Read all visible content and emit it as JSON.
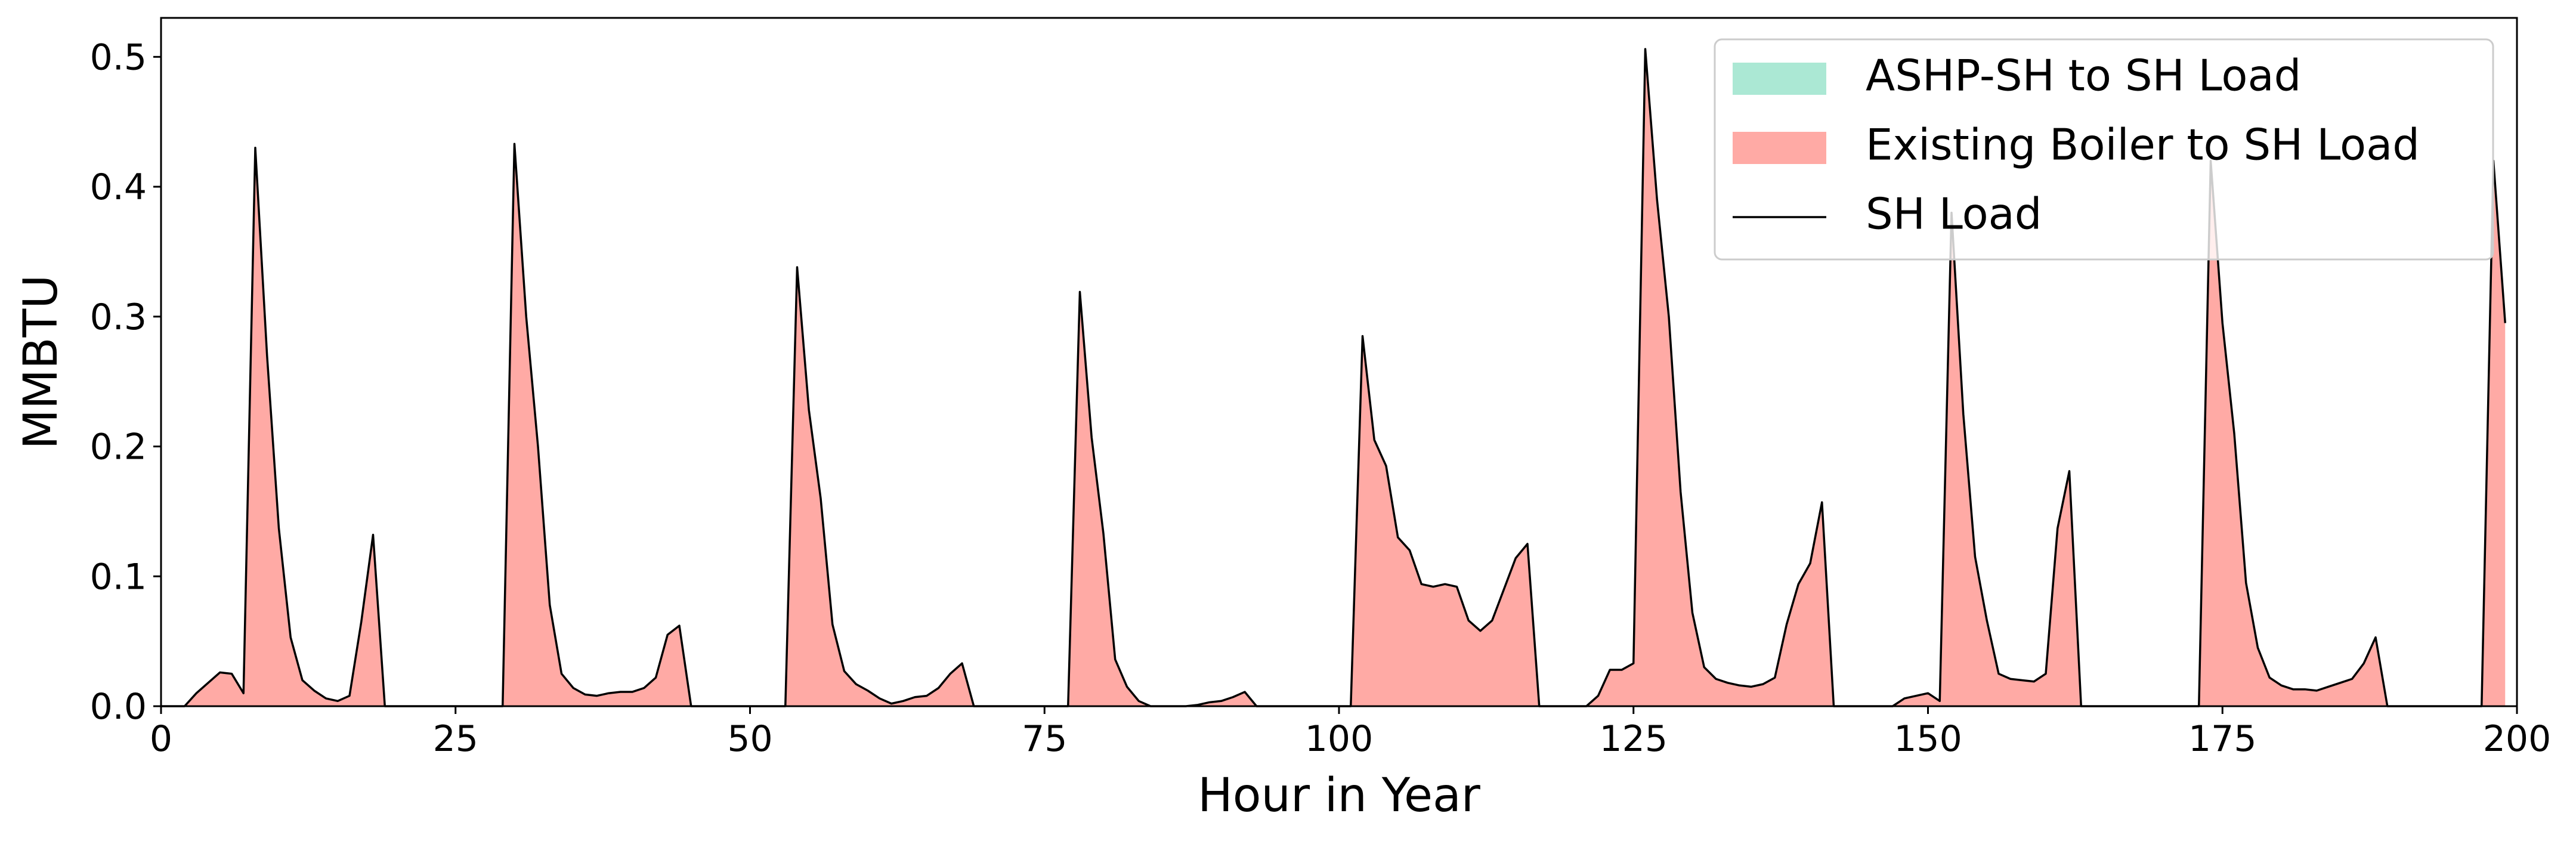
{
  "chart_data": {
    "type": "stacked_area",
    "xlabel": "Hour in Year",
    "ylabel": "MMBTU",
    "x": [
      0,
      1,
      2,
      3,
      4,
      5,
      6,
      7,
      8,
      9,
      10,
      11,
      12,
      13,
      14,
      15,
      16,
      17,
      18,
      19,
      20,
      21,
      22,
      23,
      24,
      25,
      26,
      27,
      28,
      29,
      30,
      31,
      32,
      33,
      34,
      35,
      36,
      37,
      38,
      39,
      40,
      41,
      42,
      43,
      44,
      45,
      46,
      47,
      48,
      49,
      50,
      51,
      52,
      53,
      54,
      55,
      56,
      57,
      58,
      59,
      60,
      61,
      62,
      63,
      64,
      65,
      66,
      67,
      68,
      69,
      70,
      71,
      72,
      73,
      74,
      75,
      76,
      77,
      78,
      79,
      80,
      81,
      82,
      83,
      84,
      85,
      86,
      87,
      88,
      89,
      90,
      91,
      92,
      93,
      94,
      95,
      96,
      97,
      98,
      99,
      100,
      101,
      102,
      103,
      104,
      105,
      106,
      107,
      108,
      109,
      110,
      111,
      112,
      113,
      114,
      115,
      116,
      117,
      118,
      119,
      120,
      121,
      122,
      123,
      124,
      125,
      126,
      127,
      128,
      129,
      130,
      131,
      132,
      133,
      134,
      135,
      136,
      137,
      138,
      139,
      140,
      141,
      142,
      143,
      144,
      145,
      146,
      147,
      148,
      149,
      150,
      151,
      152,
      153,
      154,
      155,
      156,
      157,
      158,
      159,
      160,
      161,
      162,
      163,
      164,
      165,
      166,
      167,
      168,
      169,
      170,
      171,
      172,
      173,
      174,
      175,
      176,
      177,
      178,
      179,
      180,
      181,
      182,
      183,
      184,
      185,
      186,
      187,
      188,
      189,
      190,
      191,
      192,
      193,
      194,
      195,
      196,
      197,
      198,
      199
    ],
    "series": [
      {
        "name": "ASHP-SH to SH Load",
        "color": "#abe8d4",
        "style": "area",
        "values": [
          0,
          0,
          0,
          0,
          0,
          0,
          0,
          0,
          0,
          0,
          0,
          0,
          0,
          0,
          0,
          0,
          0,
          0,
          0,
          0,
          0,
          0,
          0,
          0,
          0,
          0,
          0,
          0,
          0,
          0,
          0,
          0,
          0,
          0,
          0,
          0,
          0,
          0,
          0,
          0,
          0,
          0,
          0,
          0,
          0,
          0,
          0,
          0,
          0,
          0,
          0,
          0,
          0,
          0,
          0,
          0,
          0,
          0,
          0,
          0,
          0,
          0,
          0,
          0,
          0,
          0,
          0,
          0,
          0,
          0,
          0,
          0,
          0,
          0,
          0,
          0,
          0,
          0,
          0,
          0,
          0,
          0,
          0,
          0,
          0,
          0,
          0,
          0,
          0,
          0,
          0,
          0,
          0,
          0,
          0,
          0,
          0,
          0,
          0,
          0,
          0,
          0,
          0,
          0,
          0,
          0,
          0,
          0,
          0,
          0,
          0,
          0,
          0,
          0,
          0,
          0,
          0,
          0,
          0,
          0,
          0,
          0,
          0,
          0,
          0,
          0,
          0,
          0,
          0,
          0,
          0,
          0,
          0,
          0,
          0,
          0,
          0,
          0,
          0,
          0,
          0,
          0,
          0,
          0,
          0,
          0,
          0,
          0,
          0,
          0,
          0,
          0,
          0,
          0,
          0,
          0,
          0,
          0,
          0,
          0,
          0,
          0,
          0,
          0,
          0,
          0,
          0,
          0,
          0,
          0,
          0,
          0,
          0,
          0,
          0,
          0,
          0,
          0,
          0,
          0,
          0,
          0,
          0,
          0,
          0,
          0,
          0,
          0,
          0,
          0,
          0,
          0,
          0,
          0,
          0,
          0,
          0,
          0,
          0,
          0
        ]
      },
      {
        "name": "Existing Boiler to SH Load",
        "color": "#ffaaa5",
        "style": "area",
        "values": [
          0,
          0,
          0,
          0.01,
          0.018,
          0.026,
          0.025,
          0.01,
          0.43,
          0.27,
          0.137,
          0.053,
          0.02,
          0.012,
          0.006,
          0.004,
          0.008,
          0.065,
          0.132,
          0,
          0,
          0,
          0,
          0,
          0,
          0,
          0,
          0,
          0,
          0,
          0.433,
          0.3,
          0.2,
          0.078,
          0.025,
          0.014,
          0.009,
          0.008,
          0.01,
          0.011,
          0.011,
          0.014,
          0.022,
          0.055,
          0.062,
          0,
          0,
          0,
          0,
          0,
          0,
          0,
          0,
          0,
          0.338,
          0.228,
          0.16,
          0.063,
          0.027,
          0.017,
          0.012,
          0.006,
          0.002,
          0.004,
          0.007,
          0.008,
          0.014,
          0.025,
          0.033,
          0,
          0,
          0,
          0,
          0,
          0,
          0,
          0,
          0,
          0.319,
          0.207,
          0.133,
          0.036,
          0.015,
          0.004,
          0,
          0,
          0,
          0,
          0.001,
          0.003,
          0.004,
          0.007,
          0.011,
          0,
          0,
          0,
          0,
          0,
          0,
          0,
          0,
          0,
          0.285,
          0.205,
          0.185,
          0.13,
          0.12,
          0.094,
          0.092,
          0.094,
          0.092,
          0.066,
          0.058,
          0.066,
          0.09,
          0.114,
          0.125,
          0,
          0,
          0,
          0,
          0,
          0.008,
          0.028,
          0.028,
          0.033,
          0.506,
          0.39,
          0.3,
          0.165,
          0.072,
          0.03,
          0.021,
          0.018,
          0.016,
          0.015,
          0.017,
          0.022,
          0.063,
          0.094,
          0.11,
          0.157,
          0,
          0,
          0,
          0,
          0,
          0,
          0.006,
          0.008,
          0.01,
          0.004,
          0.38,
          0.225,
          0.115,
          0.066,
          0.025,
          0.021,
          0.02,
          0.019,
          0.025,
          0.137,
          0.181,
          0,
          0,
          0,
          0,
          0,
          0,
          0,
          0,
          0,
          0,
          0,
          0.42,
          0.295,
          0.21,
          0.095,
          0.045,
          0.022,
          0.016,
          0.013,
          0.013,
          0.012,
          0.015,
          0.018,
          0.021,
          0.033,
          0.053,
          0,
          0,
          0,
          0,
          0,
          0,
          0,
          0,
          0,
          0.42,
          0.295
        ]
      },
      {
        "name": "SH Load",
        "color": "#000000",
        "style": "line",
        "values": [
          0,
          0,
          0,
          0.01,
          0.018,
          0.026,
          0.025,
          0.01,
          0.43,
          0.27,
          0.137,
          0.053,
          0.02,
          0.012,
          0.006,
          0.004,
          0.008,
          0.065,
          0.132,
          0,
          0,
          0,
          0,
          0,
          0,
          0,
          0,
          0,
          0,
          0,
          0.433,
          0.3,
          0.2,
          0.078,
          0.025,
          0.014,
          0.009,
          0.008,
          0.01,
          0.011,
          0.011,
          0.014,
          0.022,
          0.055,
          0.062,
          0,
          0,
          0,
          0,
          0,
          0,
          0,
          0,
          0,
          0.338,
          0.228,
          0.16,
          0.063,
          0.027,
          0.017,
          0.012,
          0.006,
          0.002,
          0.004,
          0.007,
          0.008,
          0.014,
          0.025,
          0.033,
          0,
          0,
          0,
          0,
          0,
          0,
          0,
          0,
          0,
          0.319,
          0.207,
          0.133,
          0.036,
          0.015,
          0.004,
          0,
          0,
          0,
          0,
          0.001,
          0.003,
          0.004,
          0.007,
          0.011,
          0,
          0,
          0,
          0,
          0,
          0,
          0,
          0,
          0,
          0.285,
          0.205,
          0.185,
          0.13,
          0.12,
          0.094,
          0.092,
          0.094,
          0.092,
          0.066,
          0.058,
          0.066,
          0.09,
          0.114,
          0.125,
          0,
          0,
          0,
          0,
          0,
          0.008,
          0.028,
          0.028,
          0.033,
          0.506,
          0.39,
          0.3,
          0.165,
          0.072,
          0.03,
          0.021,
          0.018,
          0.016,
          0.015,
          0.017,
          0.022,
          0.063,
          0.094,
          0.11,
          0.157,
          0,
          0,
          0,
          0,
          0,
          0,
          0.006,
          0.008,
          0.01,
          0.004,
          0.38,
          0.225,
          0.115,
          0.066,
          0.025,
          0.021,
          0.02,
          0.019,
          0.025,
          0.137,
          0.181,
          0,
          0,
          0,
          0,
          0,
          0,
          0,
          0,
          0,
          0,
          0,
          0.42,
          0.295,
          0.21,
          0.095,
          0.045,
          0.022,
          0.016,
          0.013,
          0.013,
          0.012,
          0.015,
          0.018,
          0.021,
          0.033,
          0.053,
          0,
          0,
          0,
          0,
          0,
          0,
          0,
          0,
          0,
          0.42,
          0.295
        ]
      }
    ],
    "xlim": [
      0,
      200
    ],
    "xticks": [
      0,
      25,
      50,
      75,
      100,
      125,
      150,
      175,
      200
    ],
    "ylim": [
      0,
      0.53
    ],
    "yticks": [
      {
        "value": 0,
        "label": "0.0"
      },
      0.1,
      0.2,
      0.3,
      0.4,
      0.5
    ],
    "grid": false,
    "legend": "upper right"
  }
}
